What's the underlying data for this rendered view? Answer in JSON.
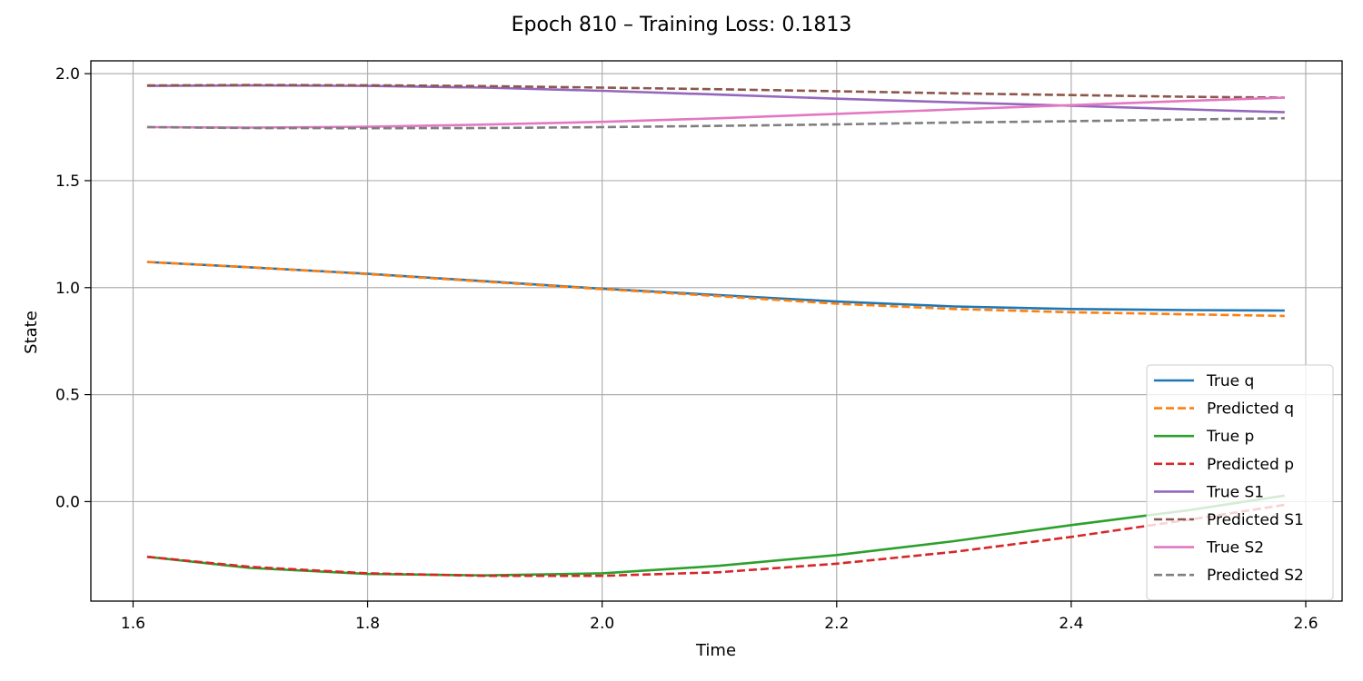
{
  "chart_data": {
    "type": "line",
    "title": "Epoch 810 – Training Loss: 0.1813",
    "xlabel": "Time",
    "ylabel": "State",
    "xlim": [
      1.564,
      2.631
    ],
    "ylim": [
      -0.465,
      2.06
    ],
    "xticks": [
      1.6,
      1.8,
      2.0,
      2.2,
      2.4,
      2.6
    ],
    "xtick_labels": [
      "1.6",
      "1.8",
      "2.0",
      "2.2",
      "2.4",
      "2.6"
    ],
    "yticks": [
      0.0,
      0.5,
      1.0,
      1.5,
      2.0
    ],
    "ytick_labels": [
      "0.0",
      "0.5",
      "1.0",
      "1.5",
      "2.0"
    ],
    "grid": true,
    "legend_position": "lower right",
    "x": [
      1.612,
      1.7,
      1.8,
      1.9,
      2.0,
      2.1,
      2.2,
      2.3,
      2.4,
      2.5,
      2.582
    ],
    "series": [
      {
        "name": "True q",
        "color": "#1f77b4",
        "dash": "solid",
        "values": [
          1.12,
          1.095,
          1.065,
          1.03,
          0.995,
          0.965,
          0.935,
          0.912,
          0.9,
          0.895,
          0.893
        ]
      },
      {
        "name": "Predicted q",
        "color": "#ff7f0e",
        "dash": "dashed",
        "values": [
          1.12,
          1.095,
          1.063,
          1.028,
          0.993,
          0.96,
          0.925,
          0.9,
          0.885,
          0.875,
          0.868
        ]
      },
      {
        "name": "True p",
        "color": "#2ca02c",
        "dash": "solid",
        "values": [
          -0.258,
          -0.31,
          -0.338,
          -0.345,
          -0.335,
          -0.3,
          -0.25,
          -0.185,
          -0.11,
          -0.04,
          0.028
        ]
      },
      {
        "name": "Predicted p",
        "color": "#d62728",
        "dash": "dashed",
        "values": [
          -0.258,
          -0.305,
          -0.335,
          -0.347,
          -0.347,
          -0.33,
          -0.29,
          -0.235,
          -0.165,
          -0.085,
          -0.015
        ]
      },
      {
        "name": "True S1",
        "color": "#9467bd",
        "dash": "solid",
        "values": [
          1.943,
          1.945,
          1.943,
          1.935,
          1.92,
          1.902,
          1.883,
          1.866,
          1.85,
          1.833,
          1.82
        ]
      },
      {
        "name": "Predicted S1",
        "color": "#8c564b",
        "dash": "dashed",
        "values": [
          1.945,
          1.947,
          1.946,
          1.942,
          1.935,
          1.927,
          1.918,
          1.908,
          1.9,
          1.892,
          1.888
        ]
      },
      {
        "name": "True S2",
        "color": "#e377c2",
        "dash": "solid",
        "values": [
          1.75,
          1.748,
          1.752,
          1.762,
          1.775,
          1.792,
          1.812,
          1.833,
          1.853,
          1.873,
          1.888
        ]
      },
      {
        "name": "Predicted S2",
        "color": "#7f7f7f",
        "dash": "dashed",
        "values": [
          1.75,
          1.746,
          1.745,
          1.746,
          1.75,
          1.756,
          1.763,
          1.772,
          1.778,
          1.786,
          1.792
        ]
      }
    ]
  }
}
